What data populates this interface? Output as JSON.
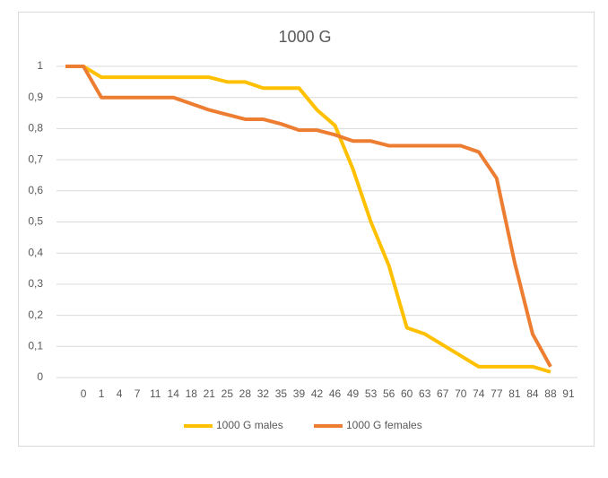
{
  "chart_data": {
    "type": "line",
    "title": "1000 G",
    "categories": [
      null,
      "0",
      "1",
      "4",
      "7",
      "11",
      "14",
      "18",
      "21",
      "25",
      "28",
      "32",
      "35",
      "39",
      "42",
      "46",
      "49",
      "53",
      "56",
      "60",
      "63",
      "67",
      "70",
      "74",
      "77",
      "81",
      "84",
      "88",
      "91"
    ],
    "series": [
      {
        "name": "1000 G males",
        "color": "#FFC000",
        "values": [
          1,
          1,
          0.965,
          0.965,
          0.965,
          0.965,
          0.965,
          0.965,
          0.965,
          0.95,
          0.95,
          0.93,
          0.93,
          0.93,
          0.86,
          0.81,
          0.67,
          0.5,
          0.36,
          0.16,
          0.14,
          0.105,
          0.07,
          0.035,
          0.035,
          0.035,
          0.035,
          0.018,
          null
        ]
      },
      {
        "name": "1000 G females",
        "color": "#ED7D31",
        "values": [
          1,
          1,
          0.9,
          0.9,
          0.9,
          0.9,
          0.9,
          0.88,
          0.86,
          0.845,
          0.83,
          0.83,
          0.815,
          0.795,
          0.795,
          0.78,
          0.76,
          0.76,
          0.745,
          0.745,
          0.745,
          0.745,
          0.745,
          0.725,
          0.64,
          0.37,
          0.14,
          0.035,
          null
        ]
      }
    ],
    "ylim": [
      0,
      1
    ],
    "yticks": [
      0,
      {
        "value": 0.1,
        "label": "0,1"
      },
      {
        "value": 0.2,
        "label": "0,2"
      },
      {
        "value": 0.3,
        "label": "0,3"
      },
      {
        "value": 0.4,
        "label": "0,4"
      },
      {
        "value": 0.5,
        "label": "0,5"
      },
      {
        "value": 0.6,
        "label": "0,6"
      },
      {
        "value": 0.7,
        "label": "0,7"
      },
      {
        "value": 0.8,
        "label": "0,8"
      },
      {
        "value": 0.9,
        "label": "0,9"
      },
      1
    ],
    "grid": true,
    "legend": "bottom"
  }
}
